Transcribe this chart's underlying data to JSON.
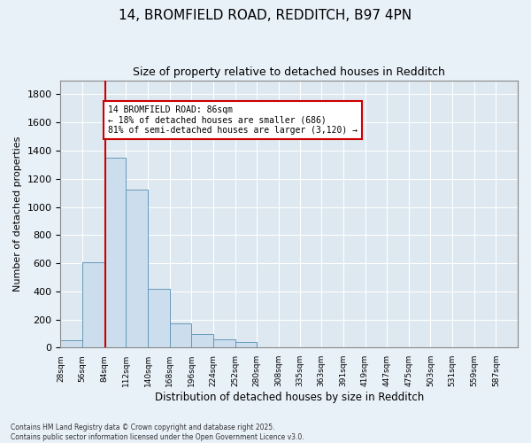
{
  "title_line1": "14, BROMFIELD ROAD, REDDITCH, B97 4PN",
  "title_line2": "Size of property relative to detached houses in Redditch",
  "xlabel": "Distribution of detached houses by size in Redditch",
  "ylabel": "Number of detached properties",
  "bar_color": "#ccdded",
  "bar_edge_color": "#6699bb",
  "background_color": "#dde8f0",
  "fig_background_color": "#e8f0f8",
  "grid_color": "#ffffff",
  "bins": [
    28,
    56,
    84,
    112,
    140,
    168,
    196,
    224,
    252,
    280,
    308,
    335,
    363,
    391,
    419,
    447,
    475,
    503,
    531,
    559,
    587
  ],
  "values": [
    50,
    610,
    1350,
    1120,
    420,
    170,
    95,
    60,
    40,
    0,
    0,
    0,
    0,
    0,
    0,
    0,
    0,
    0,
    0,
    0
  ],
  "property_size": 86,
  "red_line_color": "#cc0000",
  "annotation_text": "14 BROMFIELD ROAD: 86sqm\n← 18% of detached houses are smaller (686)\n81% of semi-detached houses are larger (3,120) →",
  "annotation_box_color": "#ffffff",
  "annotation_box_edge": "#cc0000",
  "ylim": [
    0,
    1900
  ],
  "yticks": [
    0,
    200,
    400,
    600,
    800,
    1000,
    1200,
    1400,
    1600,
    1800
  ],
  "footnote1": "Contains HM Land Registry data © Crown copyright and database right 2025.",
  "footnote2": "Contains public sector information licensed under the Open Government Licence v3.0."
}
